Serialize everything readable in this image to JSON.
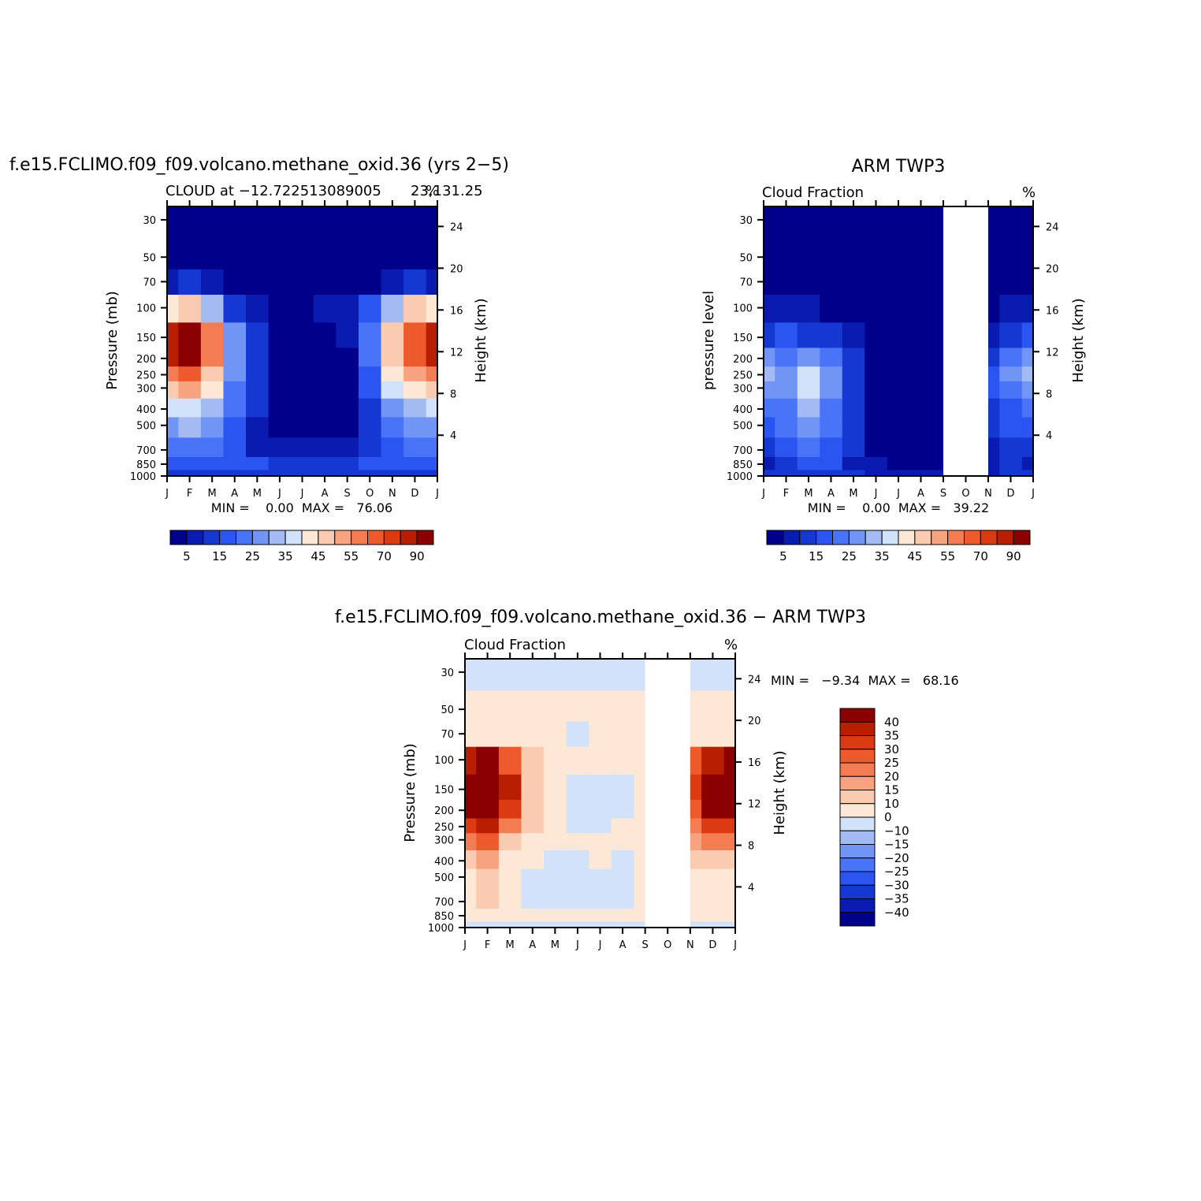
{
  "colors": {
    "model_obs_scale": [
      "#00008b",
      "#0a1cb0",
      "#1638d2",
      "#2a55f0",
      "#4a74f7",
      "#7095f4",
      "#a4baf2",
      "#d2e2fb",
      "#fde8d6",
      "#fbcbb1",
      "#f7a380",
      "#f47c52",
      "#ef5a2c",
      "#dc3a10",
      "#b81e00",
      "#8b0000"
    ],
    "diff_scale": [
      "#00008b",
      "#0a1cb0",
      "#1638d2",
      "#2a55f0",
      "#4a74f7",
      "#7095f4",
      "#a4baf2",
      "#d2e2fb",
      "#fde8d6",
      "#fbcbb1",
      "#f7a380",
      "#f47c52",
      "#ef5a2c",
      "#dc3a10",
      "#b81e00",
      "#8b0000"
    ]
  },
  "chart_data": [
    {
      "type": "heatmap",
      "id": "model",
      "title": "f.e15.FCLIMO.f09_f09.volcano.methane_oxid.36 (yrs 2−5)",
      "left_string": "CLOUD at −12.722513089005",
      "right_string": "%",
      "center_string": "23,131.25",
      "ylabel": "Pressure (mb)",
      "ylabel_right": "Height (km)",
      "x_ticks": [
        "J",
        "F",
        "M",
        "A",
        "M",
        "J",
        "J",
        "A",
        "S",
        "O",
        "N",
        "D",
        "J"
      ],
      "y_ticks": [
        "30",
        "50",
        "70",
        "100",
        "150",
        "200",
        "250",
        "300",
        "400",
        "500",
        "700",
        "850",
        "1000"
      ],
      "y_ticks_right": [
        "24",
        "20",
        "16",
        "12",
        "8",
        "4"
      ],
      "min_max": "MIN =    0.00  MAX =   76.06",
      "colorbar_labels": [
        "5",
        "15",
        "25",
        "35",
        "45",
        "55",
        "70",
        "90"
      ],
      "grid": [
        [
          0,
          0,
          0,
          0,
          0,
          0,
          0,
          0,
          0,
          0,
          0,
          0,
          0
        ],
        [
          0,
          0,
          0,
          0,
          0,
          0,
          0,
          0,
          0,
          0,
          0,
          0,
          0
        ],
        [
          1,
          2,
          1,
          0,
          0,
          0,
          0,
          0,
          0,
          0,
          1,
          2,
          1
        ],
        [
          8,
          9,
          6,
          2,
          1,
          0,
          0,
          1,
          1,
          3,
          6,
          9,
          8
        ],
        [
          14,
          15,
          11,
          5,
          2,
          0,
          0,
          0,
          1,
          4,
          9,
          12,
          14
        ],
        [
          14,
          15,
          11,
          5,
          2,
          0,
          0,
          0,
          0,
          4,
          9,
          12,
          14
        ],
        [
          11,
          12,
          9,
          5,
          2,
          0,
          0,
          0,
          0,
          3,
          8,
          10,
          11
        ],
        [
          9,
          10,
          8,
          4,
          2,
          0,
          0,
          0,
          0,
          3,
          7,
          8,
          9
        ],
        [
          7,
          7,
          6,
          4,
          2,
          0,
          0,
          0,
          0,
          2,
          5,
          6,
          7
        ],
        [
          5,
          6,
          5,
          3,
          1,
          0,
          0,
          0,
          0,
          2,
          4,
          5,
          5
        ],
        [
          4,
          4,
          4,
          3,
          1,
          1,
          1,
          1,
          1,
          2,
          3,
          4,
          4
        ],
        [
          3,
          3,
          3,
          3,
          3,
          2,
          2,
          2,
          2,
          3,
          3,
          3,
          3
        ],
        [
          2,
          2,
          2,
          2,
          2,
          2,
          2,
          2,
          2,
          2,
          2,
          2,
          2
        ]
      ]
    },
    {
      "type": "heatmap",
      "id": "obs",
      "title": "ARM TWP3",
      "left_string": "Cloud Fraction",
      "right_string": "%",
      "ylabel": "pressure level",
      "ylabel_right": "Height (km)",
      "x_ticks": [
        "J",
        "F",
        "M",
        "A",
        "M",
        "J",
        "J",
        "A",
        "S",
        "O",
        "N",
        "D",
        "J"
      ],
      "y_ticks": [
        "30",
        "50",
        "70",
        "100",
        "150",
        "200",
        "250",
        "300",
        "400",
        "500",
        "700",
        "850",
        "1000"
      ],
      "y_ticks_right": [
        "24",
        "20",
        "16",
        "12",
        "8",
        "4"
      ],
      "min_max": "MIN =    0.00  MAX =   39.22",
      "colorbar_labels": [
        "5",
        "15",
        "25",
        "35",
        "45",
        "55",
        "70",
        "90"
      ],
      "missing_months": [
        "S",
        "O"
      ],
      "grid": [
        [
          0,
          0,
          0,
          0,
          0,
          0,
          0,
          0,
          0,
          0,
          0,
          0,
          0
        ],
        [
          0,
          0,
          0,
          0,
          0,
          0,
          0,
          0,
          0,
          0,
          0,
          0,
          0
        ],
        [
          0,
          0,
          0,
          0,
          0,
          0,
          0,
          0,
          0,
          0,
          0,
          0,
          0
        ],
        [
          1,
          1,
          1,
          0,
          0,
          0,
          0,
          0,
          0,
          0,
          0,
          1,
          1
        ],
        [
          2,
          3,
          2,
          2,
          1,
          0,
          0,
          0,
          0,
          0,
          1,
          2,
          3
        ],
        [
          5,
          4,
          5,
          4,
          2,
          0,
          0,
          0,
          0,
          0,
          2,
          4,
          5
        ],
        [
          6,
          5,
          7,
          5,
          2,
          0,
          0,
          0,
          0,
          0,
          3,
          5,
          6
        ],
        [
          5,
          5,
          7,
          5,
          2,
          0,
          0,
          0,
          0,
          0,
          3,
          4,
          5
        ],
        [
          4,
          4,
          6,
          4,
          2,
          0,
          0,
          0,
          0,
          0,
          2,
          3,
          4
        ],
        [
          3,
          4,
          5,
          4,
          2,
          0,
          0,
          0,
          0,
          0,
          2,
          3,
          3
        ],
        [
          2,
          3,
          4,
          3,
          2,
          0,
          0,
          0,
          0,
          0,
          1,
          2,
          2
        ],
        [
          1,
          2,
          3,
          3,
          1,
          1,
          0,
          0,
          0,
          0,
          1,
          2,
          1
        ],
        [
          2,
          2,
          2,
          2,
          2,
          1,
          1,
          1,
          1,
          1,
          1,
          2,
          2
        ]
      ]
    },
    {
      "type": "heatmap",
      "id": "diff",
      "title": "f.e15.FCLIMO.f09_f09.volcano.methane_oxid.36 − ARM TWP3",
      "left_string": "Cloud Fraction",
      "right_string": "%",
      "ylabel": "Pressure (mb)",
      "ylabel_right": "Height (km)",
      "x_ticks": [
        "J",
        "F",
        "M",
        "A",
        "M",
        "J",
        "J",
        "A",
        "S",
        "O",
        "N",
        "D",
        "J"
      ],
      "y_ticks": [
        "30",
        "50",
        "70",
        "100",
        "150",
        "200",
        "250",
        "300",
        "400",
        "500",
        "700",
        "850",
        "1000"
      ],
      "y_ticks_right": [
        "24",
        "20",
        "16",
        "12",
        "8",
        "4"
      ],
      "min_max": "MIN =   −9.34  MAX =   68.16",
      "colorbar_labels": [
        "40",
        "35",
        "30",
        "25",
        "20",
        "15",
        "10",
        "0",
        "−10",
        "−15",
        "−20",
        "−25",
        "−30",
        "−35",
        "−40"
      ],
      "missing_months": [
        "S",
        "O"
      ],
      "grid": [
        [
          7,
          7,
          7,
          7,
          7,
          7,
          7,
          7,
          7,
          7,
          7,
          7,
          7
        ],
        [
          8,
          8,
          8,
          8,
          8,
          8,
          8,
          8,
          8,
          8,
          8,
          8,
          8
        ],
        [
          8,
          8,
          8,
          8,
          8,
          7,
          8,
          8,
          8,
          8,
          8,
          8,
          8
        ],
        [
          14,
          15,
          12,
          9,
          8,
          8,
          8,
          8,
          8,
          8,
          12,
          14,
          15
        ],
        [
          15,
          15,
          14,
          9,
          8,
          7,
          7,
          7,
          8,
          8,
          13,
          15,
          15
        ],
        [
          15,
          15,
          13,
          9,
          8,
          7,
          7,
          7,
          8,
          8,
          12,
          15,
          15
        ],
        [
          13,
          14,
          11,
          9,
          8,
          7,
          7,
          8,
          8,
          8,
          11,
          13,
          13
        ],
        [
          11,
          12,
          9,
          8,
          8,
          8,
          8,
          8,
          8,
          8,
          10,
          11,
          11
        ],
        [
          9,
          10,
          8,
          8,
          7,
          7,
          8,
          7,
          8,
          8,
          9,
          9,
          9
        ],
        [
          8,
          9,
          8,
          7,
          7,
          7,
          7,
          7,
          8,
          8,
          8,
          8,
          8
        ],
        [
          8,
          9,
          8,
          7,
          7,
          7,
          7,
          7,
          8,
          8,
          8,
          8,
          8
        ],
        [
          8,
          8,
          8,
          8,
          8,
          8,
          8,
          8,
          8,
          8,
          8,
          8,
          8
        ],
        [
          7,
          7,
          7,
          7,
          7,
          7,
          7,
          7,
          7,
          7,
          7,
          7,
          7
        ]
      ]
    }
  ]
}
